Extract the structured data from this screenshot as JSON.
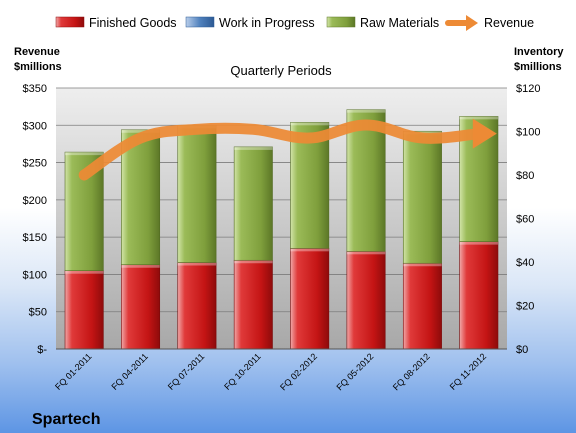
{
  "chart_data": {
    "type": "bar",
    "stacked": true,
    "title": "Quarterly Periods",
    "company": "Spartech",
    "y_left_label_lines": [
      "Revenue",
      "$millions"
    ],
    "y_right_label_lines": [
      "Inventory",
      "$millions"
    ],
    "categories": [
      "FQ 01-2011",
      "FQ 04-2011",
      "FQ 07-2011",
      "FQ 10-2011",
      "FQ 02-2012",
      "FQ 05-2012",
      "FQ 08-2012",
      "FQ 11-2012"
    ],
    "left_axis": {
      "min": 0,
      "max": 350,
      "step": 50,
      "ticks": [
        "$-",
        "$50",
        "$100",
        "$150",
        "$200",
        "$250",
        "$300",
        "$350"
      ]
    },
    "right_axis": {
      "min": 0,
      "max": 120,
      "step": 20,
      "ticks": [
        "$0",
        "$20",
        "$40",
        "$60",
        "$80",
        "$100",
        "$120"
      ]
    },
    "legend_position": "top",
    "series": [
      {
        "name": "Finished Goods",
        "axis": "left",
        "kind": "bar",
        "color": "#d21f1f",
        "values": [
          105,
          113,
          116,
          119,
          135,
          131,
          115,
          144
        ]
      },
      {
        "name": "Work in Progress",
        "axis": "left",
        "kind": "bar",
        "color": "#4f81bd",
        "values": [
          0,
          0,
          0,
          0,
          0,
          0,
          0,
          0
        ]
      },
      {
        "name": "Raw Materials",
        "axis": "left",
        "kind": "bar",
        "color": "#8fb04a",
        "values": [
          159,
          181,
          184,
          152,
          169,
          190,
          177,
          168
        ]
      },
      {
        "name": "Revenue",
        "axis": "right",
        "kind": "line",
        "color": "#ed8a35",
        "values": [
          80,
          97,
          101,
          101,
          97,
          103,
          97,
          99
        ]
      }
    ]
  }
}
